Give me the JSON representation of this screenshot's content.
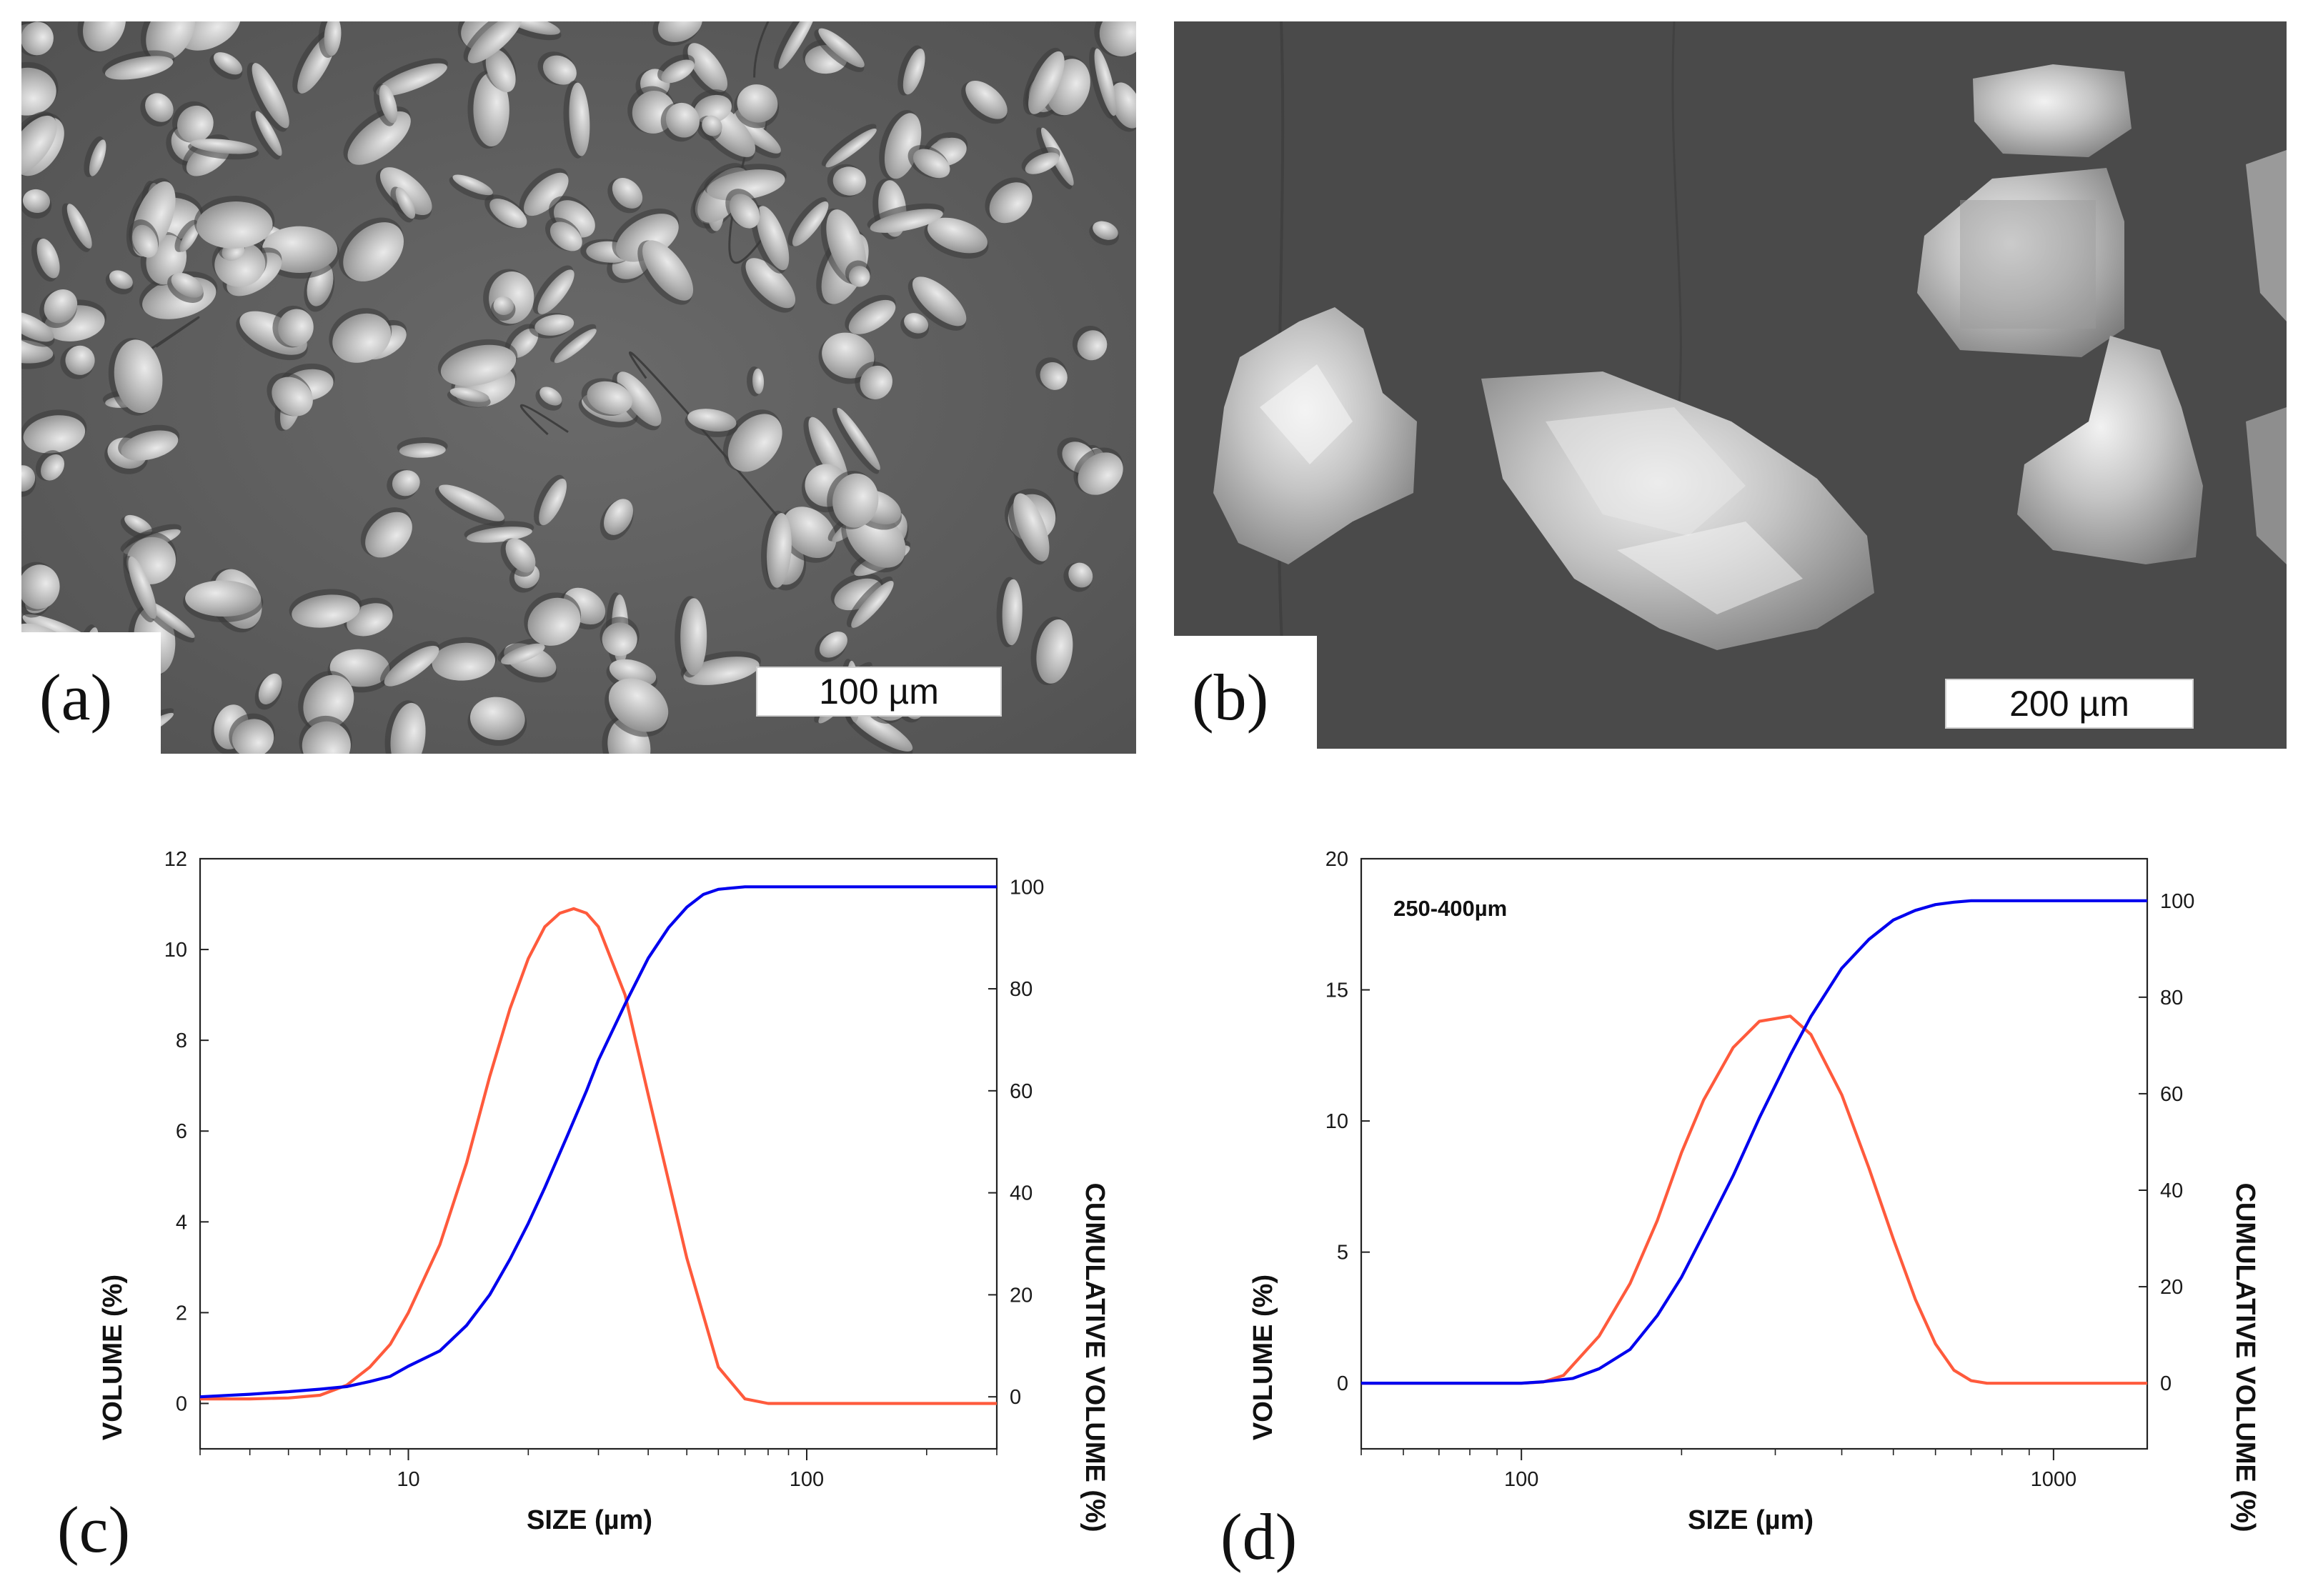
{
  "panels": {
    "a": {
      "letter": "(a)",
      "scale_label": "100 µm"
    },
    "b": {
      "letter": "(b)",
      "scale_label": "200 µm"
    },
    "c": {
      "letter": "(c)"
    },
    "d": {
      "letter": "(d)"
    }
  },
  "chart_data": [
    {
      "type": "line",
      "panel": "c",
      "title": "",
      "xlabel": "SIZE (µm)",
      "ylabel": "VOLUME (%)",
      "y2label": "CUMULATIVE VOLUME (%)",
      "x_scale": "log",
      "xlim": [
        3,
        300
      ],
      "ylim": [
        -1,
        12
      ],
      "y2lim": [
        -10.2,
        105.5
      ],
      "x_ticks": [
        10,
        100
      ],
      "y_ticks": [
        0,
        2,
        4,
        6,
        8,
        10,
        12
      ],
      "y2_ticks": [
        0,
        20,
        40,
        60,
        80,
        100
      ],
      "grid": false,
      "series": [
        {
          "axis": "left",
          "color": "#ff5a3c",
          "x": [
            3,
            4,
            5,
            6,
            7,
            8,
            9,
            10,
            12,
            14,
            16,
            18,
            20,
            22,
            24,
            26,
            28,
            30,
            35,
            40,
            50,
            60,
            70,
            80,
            100,
            150,
            200,
            300
          ],
          "y": [
            0.1,
            0.1,
            0.12,
            0.18,
            0.4,
            0.8,
            1.3,
            2.0,
            3.5,
            5.3,
            7.2,
            8.7,
            9.8,
            10.5,
            10.8,
            10.9,
            10.8,
            10.5,
            9.0,
            6.8,
            3.2,
            0.8,
            0.1,
            0.0,
            0.0,
            0.0,
            0.0,
            0.0
          ]
        },
        {
          "axis": "right",
          "color": "#0000ee",
          "x": [
            3,
            4,
            5,
            6,
            7,
            8,
            9,
            10,
            12,
            14,
            16,
            18,
            20,
            22,
            25,
            28,
            30,
            35,
            40,
            45,
            50,
            55,
            60,
            70,
            80,
            100,
            150,
            200,
            300
          ],
          "y": [
            0,
            0.5,
            1,
            1.5,
            2,
            3,
            4,
            6,
            9,
            14,
            20,
            27,
            34,
            41,
            51,
            60,
            66,
            77,
            86,
            92,
            96,
            98.5,
            99.5,
            100,
            100,
            100,
            100,
            100,
            100
          ]
        }
      ]
    },
    {
      "type": "line",
      "panel": "d",
      "title": "250-400µm",
      "xlabel": "SIZE (µm)",
      "ylabel": "VOLUME (%)",
      "y2label": "CUMULATIVE VOLUME (%)",
      "x_scale": "log",
      "xlim": [
        50,
        1500
      ],
      "ylim": [
        -2.5,
        20
      ],
      "y2lim": [
        -13.6,
        108.7
      ],
      "x_ticks": [
        100,
        1000
      ],
      "y_ticks": [
        0,
        5,
        10,
        15,
        20
      ],
      "y2_ticks": [
        0,
        20,
        40,
        60,
        80,
        100
      ],
      "grid": false,
      "series": [
        {
          "axis": "left",
          "color": "#ff5a3c",
          "x": [
            50,
            80,
            100,
            110,
            120,
            140,
            160,
            180,
            200,
            220,
            250,
            280,
            320,
            350,
            400,
            450,
            500,
            550,
            600,
            650,
            700,
            750,
            800,
            1000,
            1500
          ],
          "y": [
            0,
            0,
            0,
            0.05,
            0.3,
            1.8,
            3.8,
            6.2,
            8.8,
            10.8,
            12.8,
            13.8,
            14.0,
            13.3,
            11.0,
            8.2,
            5.5,
            3.2,
            1.5,
            0.5,
            0.1,
            0.0,
            0.0,
            0.0,
            0.0
          ]
        },
        {
          "axis": "right",
          "color": "#0000ee",
          "x": [
            50,
            80,
            100,
            110,
            125,
            140,
            160,
            180,
            200,
            225,
            250,
            280,
            320,
            350,
            400,
            450,
            500,
            550,
            600,
            650,
            700,
            800,
            1000,
            1500
          ],
          "y": [
            0,
            0,
            0,
            0.3,
            1,
            3,
            7,
            14,
            22,
            33,
            43,
            55,
            68,
            76,
            86,
            92,
            96,
            98,
            99.2,
            99.7,
            100,
            100,
            100,
            100
          ]
        }
      ]
    }
  ]
}
